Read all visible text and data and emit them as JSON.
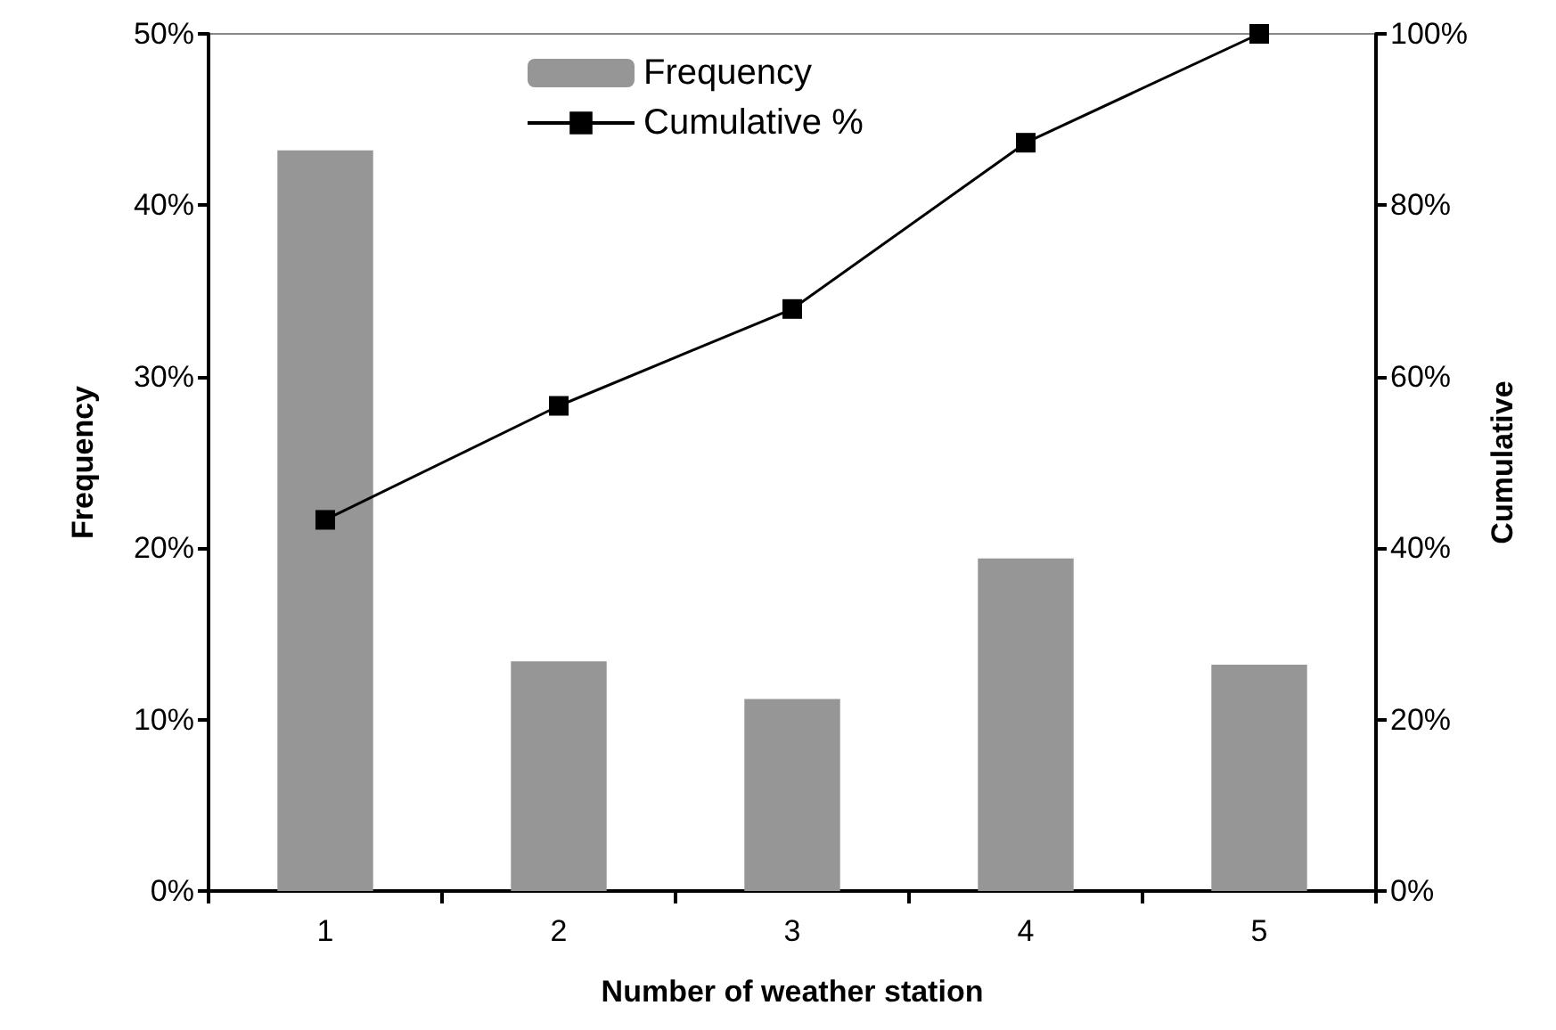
{
  "chart_data": {
    "type": "bar",
    "xlabel": "Number of weather station",
    "ylabel": "Frequency",
    "y2label": "Cumulative",
    "categories": [
      "1",
      "2",
      "3",
      "4",
      "5"
    ],
    "series": [
      {
        "name": "Frequency",
        "color": "#969696",
        "values": [
          43.2,
          13.4,
          11.2,
          19.4,
          13.2
        ]
      },
      {
        "name": "Cumulative %",
        "type": "line",
        "axis": "y2",
        "color": "#000000",
        "marker": "square",
        "values": [
          43.3,
          56.6,
          67.9,
          87.3,
          100
        ]
      }
    ],
    "ylim": [
      0,
      50
    ],
    "yticks": [
      {
        "value": 0,
        "label": "0%"
      },
      {
        "value": 10,
        "label": "10%"
      },
      {
        "value": 20,
        "label": "20%"
      },
      {
        "value": 30,
        "label": "30%"
      },
      {
        "value": 40,
        "label": "40%"
      },
      {
        "value": 50,
        "label": "50%"
      }
    ],
    "y2lim": [
      0,
      100
    ],
    "y2ticks": [
      {
        "value": 0,
        "label": "0%"
      },
      {
        "value": 20,
        "label": "20%"
      },
      {
        "value": 40,
        "label": "40%"
      },
      {
        "value": 60,
        "label": "60%"
      },
      {
        "value": 80,
        "label": "80%"
      },
      {
        "value": 100,
        "label": "100%"
      }
    ],
    "grid": false,
    "legend": "top"
  }
}
